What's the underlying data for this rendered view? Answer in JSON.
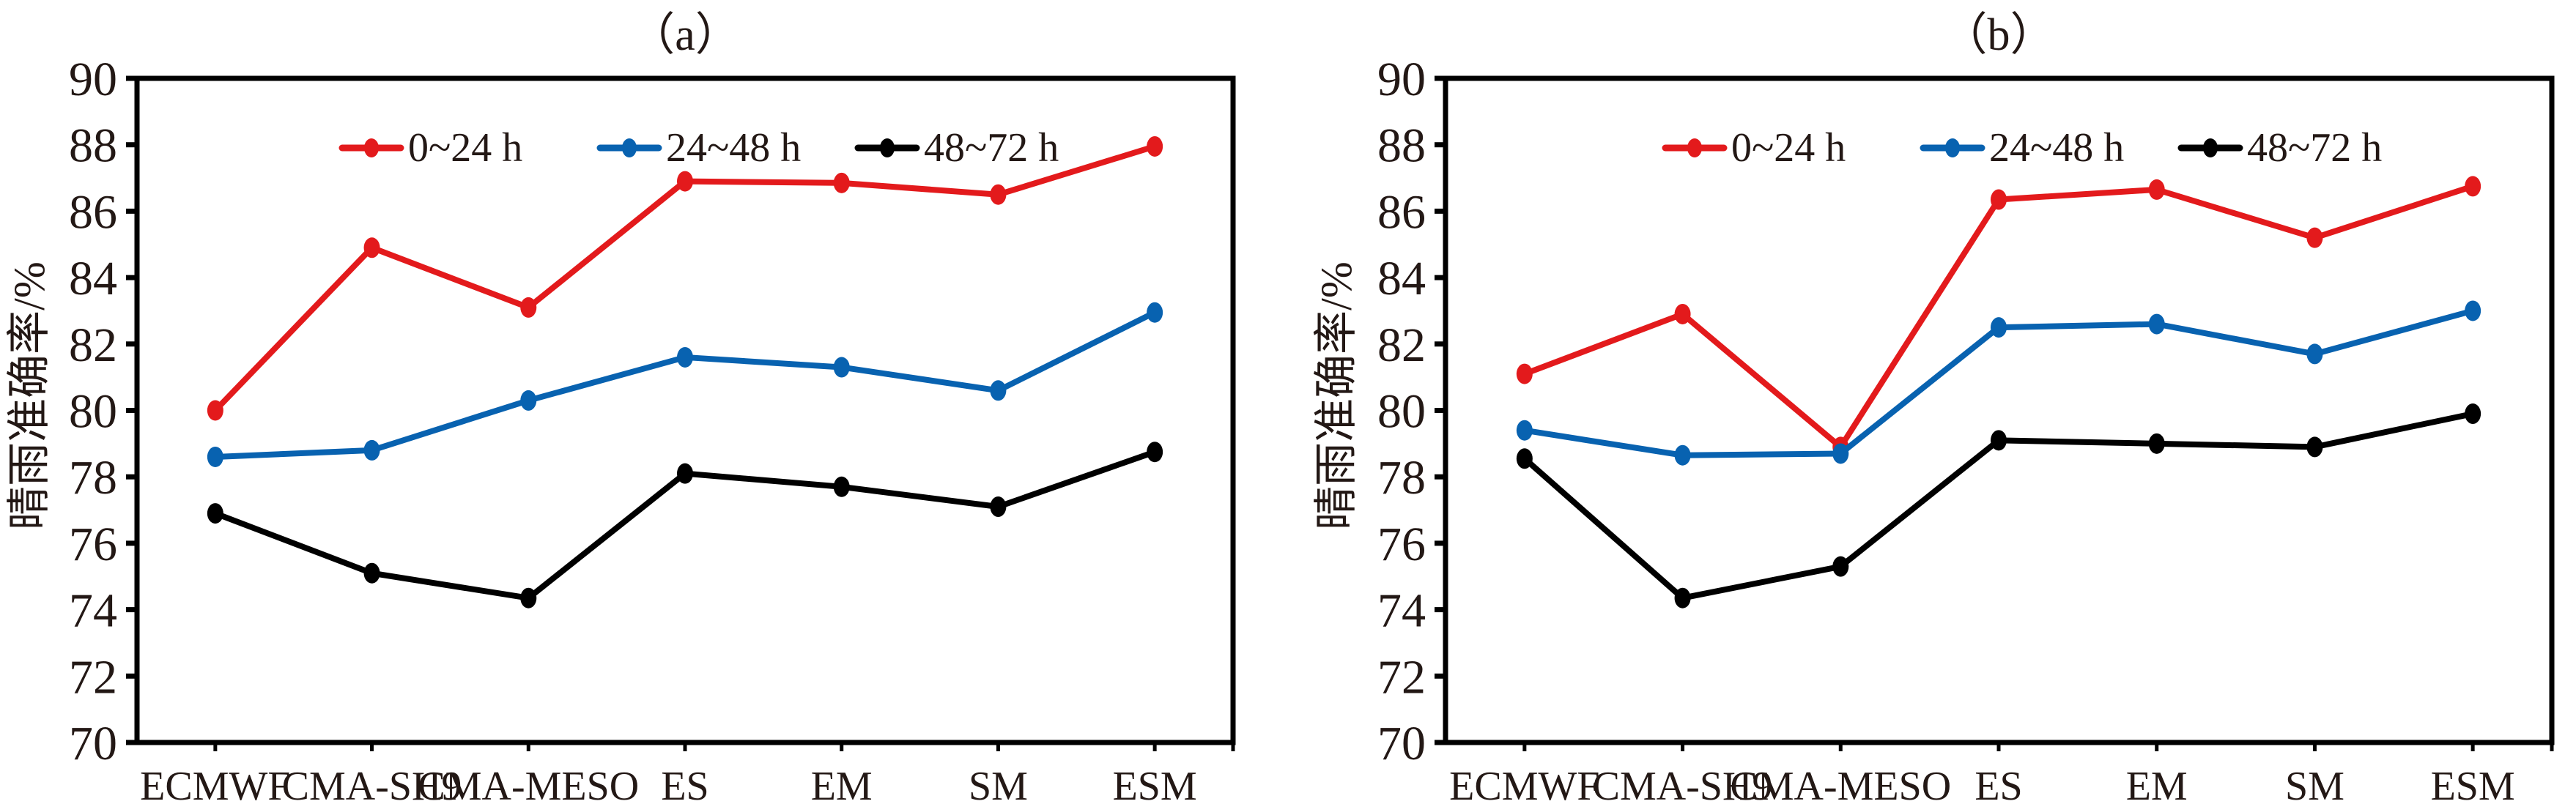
{
  "figure": {
    "panels": [
      "a",
      "b"
    ]
  },
  "chart_data": [
    {
      "type": "line",
      "panel_label": "a",
      "title": "（a）",
      "xlabel": "",
      "ylabel": "晴雨准确率/%",
      "categories": [
        "ECMWF",
        "CMA-SH9",
        "CMA-MESO",
        "ES",
        "EM",
        "SM",
        "ESM"
      ],
      "ylim": [
        70,
        90
      ],
      "yticks": [
        70,
        72,
        74,
        76,
        78,
        80,
        82,
        84,
        86,
        88,
        90
      ],
      "grid": false,
      "legend_position": "top-center",
      "series": [
        {
          "name": "0~24 h",
          "color": "#E31A1C",
          "values": [
            80.0,
            84.9,
            83.1,
            86.9,
            86.85,
            86.5,
            87.95
          ]
        },
        {
          "name": "24~48 h",
          "color": "#0862B0",
          "values": [
            78.6,
            78.8,
            80.3,
            81.6,
            81.3,
            80.6,
            82.95
          ]
        },
        {
          "name": "48~72 h",
          "color": "#000000",
          "values": [
            76.9,
            75.1,
            74.35,
            78.1,
            77.7,
            77.1,
            78.75
          ]
        }
      ]
    },
    {
      "type": "line",
      "panel_label": "b",
      "title": "（b）",
      "xlabel": "",
      "ylabel": "晴雨准确率/%",
      "categories": [
        "ECMWF",
        "CMA-SH9",
        "CMA-MESO",
        "ES",
        "EM",
        "SM",
        "ESM"
      ],
      "ylim": [
        70,
        90
      ],
      "yticks": [
        70,
        72,
        74,
        76,
        78,
        80,
        82,
        84,
        86,
        88,
        90
      ],
      "grid": false,
      "legend_position": "top-center",
      "series": [
        {
          "name": "0~24 h",
          "color": "#E31A1C",
          "values": [
            81.1,
            82.9,
            78.9,
            86.35,
            86.65,
            85.2,
            86.75
          ]
        },
        {
          "name": "24~48 h",
          "color": "#0862B0",
          "values": [
            79.4,
            78.65,
            78.7,
            82.5,
            82.6,
            81.7,
            83.0
          ]
        },
        {
          "name": "48~72 h",
          "color": "#000000",
          "values": [
            78.55,
            74.35,
            75.3,
            79.1,
            79.0,
            78.9,
            79.9
          ]
        }
      ]
    }
  ]
}
